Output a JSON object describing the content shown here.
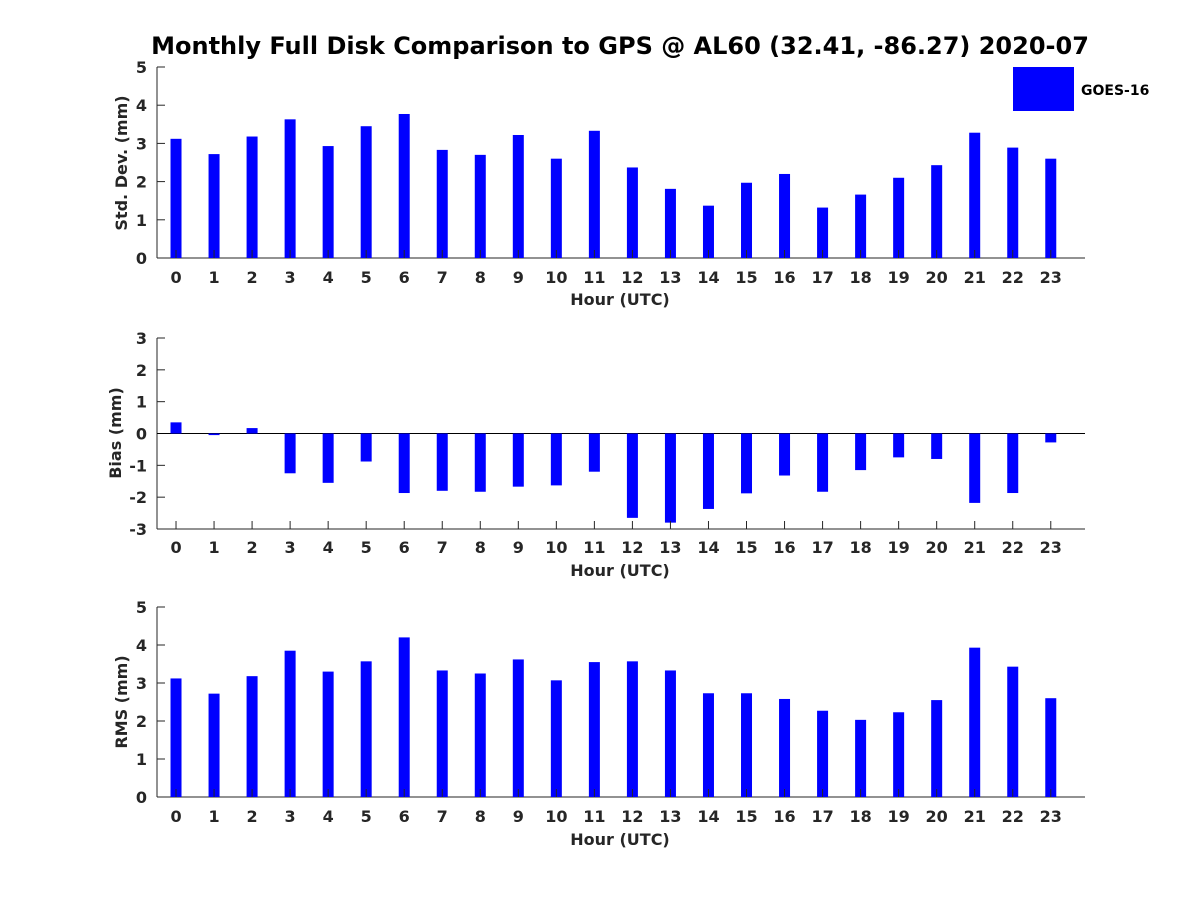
{
  "colors": {
    "bar": "#0000ff",
    "axis": "#262626",
    "background": "#ffffff"
  },
  "chart_data": {
    "title": "Monthly Full Disk Comparison to GPS @ AL60 (32.41, -86.27) 2020-07",
    "legend": {
      "label": "GOES-16",
      "placement": "top-right"
    },
    "panels": [
      {
        "id": "std",
        "type": "bar",
        "xlabel": "Hour (UTC)",
        "ylabel": "Std. Dev. (mm)",
        "ylim": [
          0,
          5
        ],
        "yticks": [
          0,
          1,
          2,
          3,
          4,
          5
        ],
        "categories": [
          "0",
          "1",
          "2",
          "3",
          "4",
          "5",
          "6",
          "7",
          "8",
          "9",
          "10",
          "11",
          "12",
          "13",
          "14",
          "15",
          "16",
          "17",
          "18",
          "19",
          "20",
          "21",
          "22",
          "23"
        ],
        "series": [
          {
            "name": "GOES-16",
            "values": [
              3.12,
              2.72,
              3.18,
              3.63,
              2.93,
              3.45,
              3.77,
              2.83,
              2.7,
              3.22,
              2.6,
              3.33,
              2.37,
              1.81,
              1.37,
              1.97,
              2.2,
              1.32,
              1.66,
              2.1,
              2.43,
              3.28,
              2.89,
              2.6
            ]
          }
        ]
      },
      {
        "id": "bias",
        "type": "bar",
        "xlabel": "Hour (UTC)",
        "ylabel": "Bias (mm)",
        "ylim": [
          -3,
          3
        ],
        "yticks": [
          -3,
          -2,
          -1,
          0,
          1,
          2,
          3
        ],
        "zero_line": true,
        "categories": [
          "0",
          "1",
          "2",
          "3",
          "4",
          "5",
          "6",
          "7",
          "8",
          "9",
          "10",
          "11",
          "12",
          "13",
          "14",
          "15",
          "16",
          "17",
          "18",
          "19",
          "20",
          "21",
          "22",
          "23"
        ],
        "series": [
          {
            "name": "GOES-16",
            "values": [
              0.35,
              -0.05,
              0.17,
              -1.25,
              -1.55,
              -0.88,
              -1.87,
              -1.8,
              -1.83,
              -1.67,
              -1.63,
              -1.2,
              -2.65,
              -2.8,
              -2.37,
              -1.88,
              -1.32,
              -1.83,
              -1.15,
              -0.75,
              -0.8,
              -2.18,
              -1.87,
              -0.28
            ]
          }
        ]
      },
      {
        "id": "rms",
        "type": "bar",
        "xlabel": "Hour (UTC)",
        "ylabel": "RMS (mm)",
        "ylim": [
          0,
          5
        ],
        "yticks": [
          0,
          1,
          2,
          3,
          4,
          5
        ],
        "categories": [
          "0",
          "1",
          "2",
          "3",
          "4",
          "5",
          "6",
          "7",
          "8",
          "9",
          "10",
          "11",
          "12",
          "13",
          "14",
          "15",
          "16",
          "17",
          "18",
          "19",
          "20",
          "21",
          "22",
          "23"
        ],
        "series": [
          {
            "name": "GOES-16",
            "values": [
              3.12,
              2.72,
              3.18,
              3.85,
              3.3,
              3.57,
              4.2,
              3.33,
              3.25,
              3.62,
              3.07,
              3.55,
              3.57,
              3.33,
              2.73,
              2.73,
              2.58,
              2.27,
              2.03,
              2.23,
              2.55,
              3.93,
              3.43,
              2.6
            ]
          }
        ]
      }
    ]
  }
}
